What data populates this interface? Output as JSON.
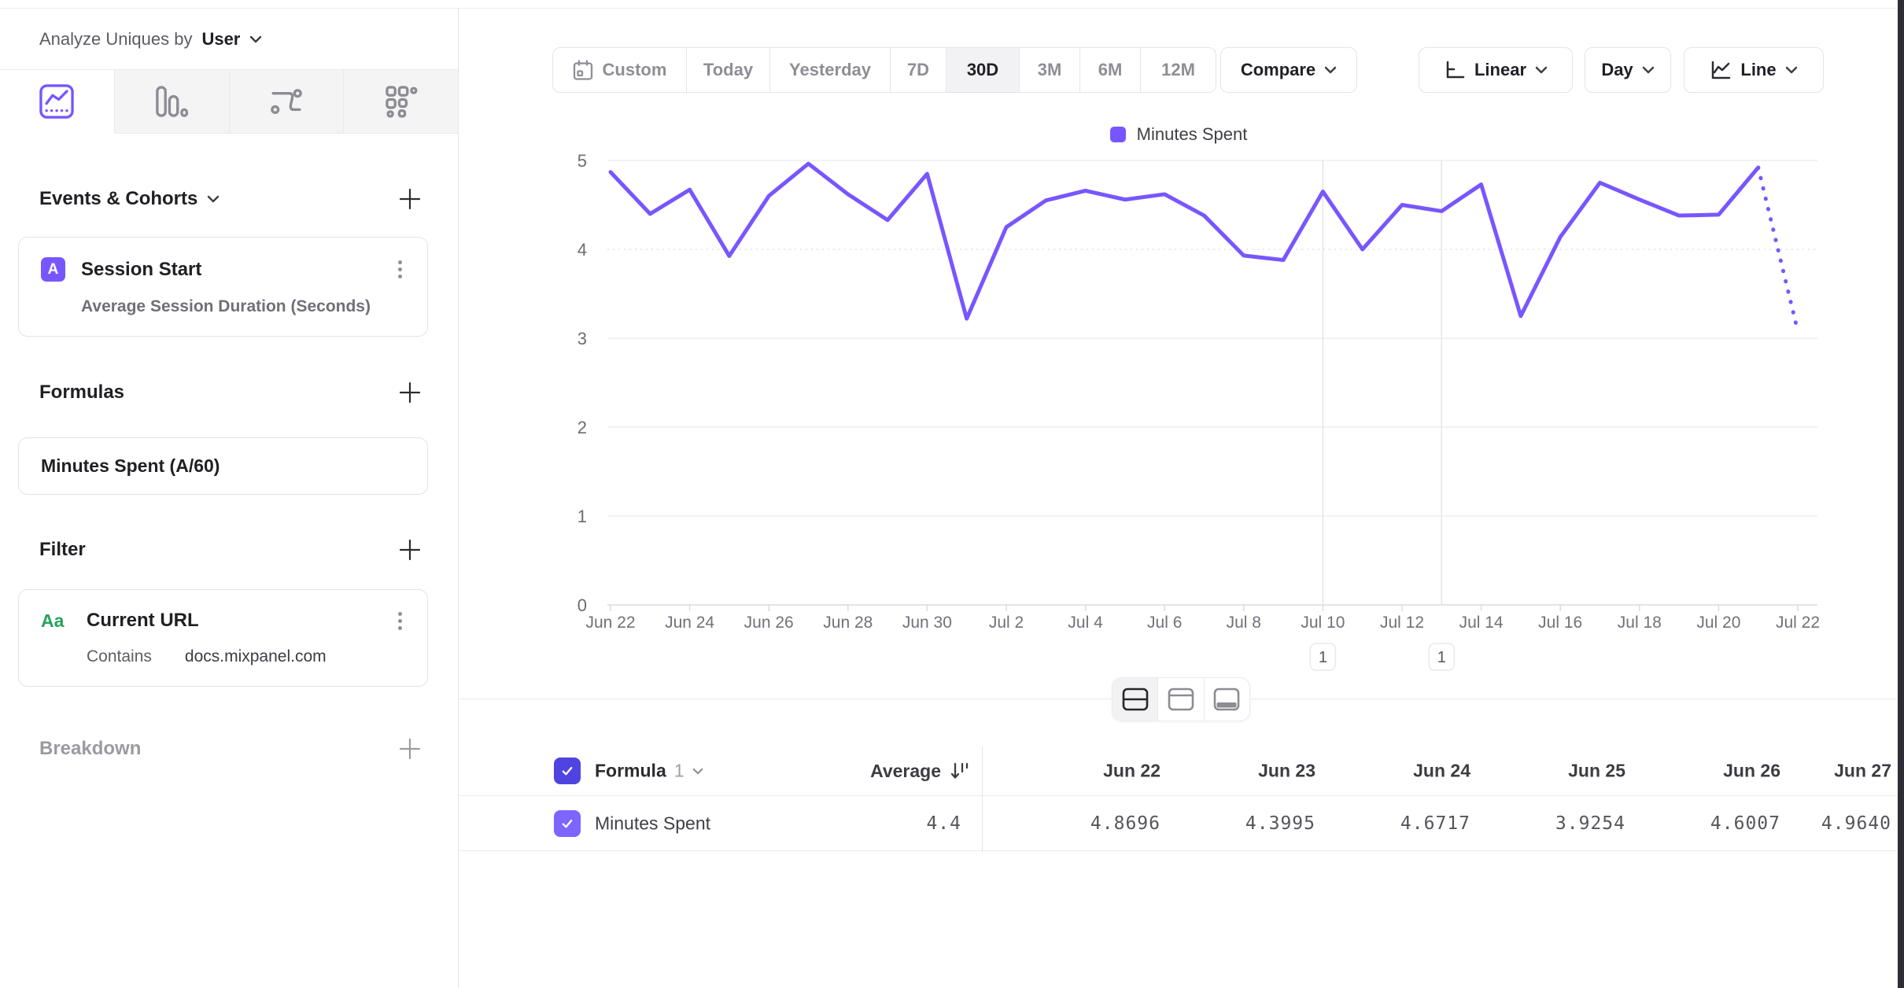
{
  "colors": {
    "accent": "#7856ff",
    "header_checkbox": "#4f44e0",
    "row_checkbox": "#7c66ff",
    "filter_badge_green": "#27a25c",
    "edge_strip": "#2e2d36"
  },
  "sidebar": {
    "analyze_label": "Analyze Uniques by",
    "analyze_value": "User",
    "tabs": [
      {
        "icon": "line-chart-icon",
        "active": true
      },
      {
        "icon": "bar-chart-icon",
        "active": false
      },
      {
        "icon": "flow-icon",
        "active": false
      },
      {
        "icon": "grid-icon",
        "active": false
      }
    ],
    "events_section": {
      "title": "Events & Cohorts",
      "card": {
        "badge": "A",
        "title": "Session Start",
        "subtitle": "Average Session Duration (Seconds)"
      }
    },
    "formulas_section": {
      "title": "Formulas",
      "card": {
        "title": "Minutes Spent (A/60)"
      }
    },
    "filter_section": {
      "title": "Filter",
      "card": {
        "badge": "Aa",
        "title": "Current URL",
        "operator": "Contains",
        "value": "docs.mixpanel.com"
      }
    },
    "breakdown_section": {
      "title": "Breakdown"
    }
  },
  "toolbar": {
    "ranges": [
      "Custom",
      "Today",
      "Yesterday",
      "7D",
      "30D",
      "3M",
      "6M",
      "12M"
    ],
    "active_range": "30D",
    "compare": "Compare",
    "scale": "Linear",
    "interval": "Day",
    "chart_type": "Line"
  },
  "legend": {
    "label": "Minutes Spent"
  },
  "table": {
    "group_label": "Formula",
    "group_index": "1",
    "average_label": "Average",
    "columns": [
      "Jun 22",
      "Jun 23",
      "Jun 24",
      "Jun 25",
      "Jun 26",
      "Jun 27"
    ],
    "rows": [
      {
        "label": "Minutes Spent",
        "average": "4.4",
        "values": [
          "4.8696",
          "4.3995",
          "4.6717",
          "3.9254",
          "4.6007",
          "4.9640"
        ]
      }
    ]
  },
  "chart_data": {
    "type": "line",
    "title": "",
    "xlabel": "",
    "ylabel": "",
    "x": [
      "Jun 22",
      "Jun 23",
      "Jun 24",
      "Jun 25",
      "Jun 26",
      "Jun 27",
      "Jun 28",
      "Jun 29",
      "Jun 30",
      "Jul 1",
      "Jul 2",
      "Jul 3",
      "Jul 4",
      "Jul 5",
      "Jul 6",
      "Jul 7",
      "Jul 8",
      "Jul 9",
      "Jul 10",
      "Jul 11",
      "Jul 12",
      "Jul 13",
      "Jul 14",
      "Jul 15",
      "Jul 16",
      "Jul 17",
      "Jul 18",
      "Jul 19",
      "Jul 20",
      "Jul 21",
      "Jul 22"
    ],
    "series": [
      {
        "name": "Minutes Spent",
        "color": "#7856ff",
        "values": [
          4.8696,
          4.3995,
          4.6717,
          3.9254,
          4.6007,
          4.964,
          4.62,
          4.33,
          4.85,
          3.22,
          4.25,
          4.55,
          4.66,
          4.56,
          4.62,
          4.38,
          3.93,
          3.88,
          4.65,
          4.0,
          4.5,
          4.43,
          4.73,
          3.25,
          4.14,
          4.75,
          4.56,
          4.38,
          4.39,
          4.92,
          3.08
        ]
      }
    ],
    "last_segment_dashed": true,
    "ylim": [
      0,
      5
    ],
    "yticks": [
      0,
      1,
      2,
      3,
      4,
      5
    ],
    "x_tick_every": 2,
    "grid": "horizontal",
    "legend_position": "top-center",
    "annotation_markers": [
      {
        "x_index": 18,
        "label": "1"
      },
      {
        "x_index": 21,
        "label": "1"
      }
    ]
  }
}
